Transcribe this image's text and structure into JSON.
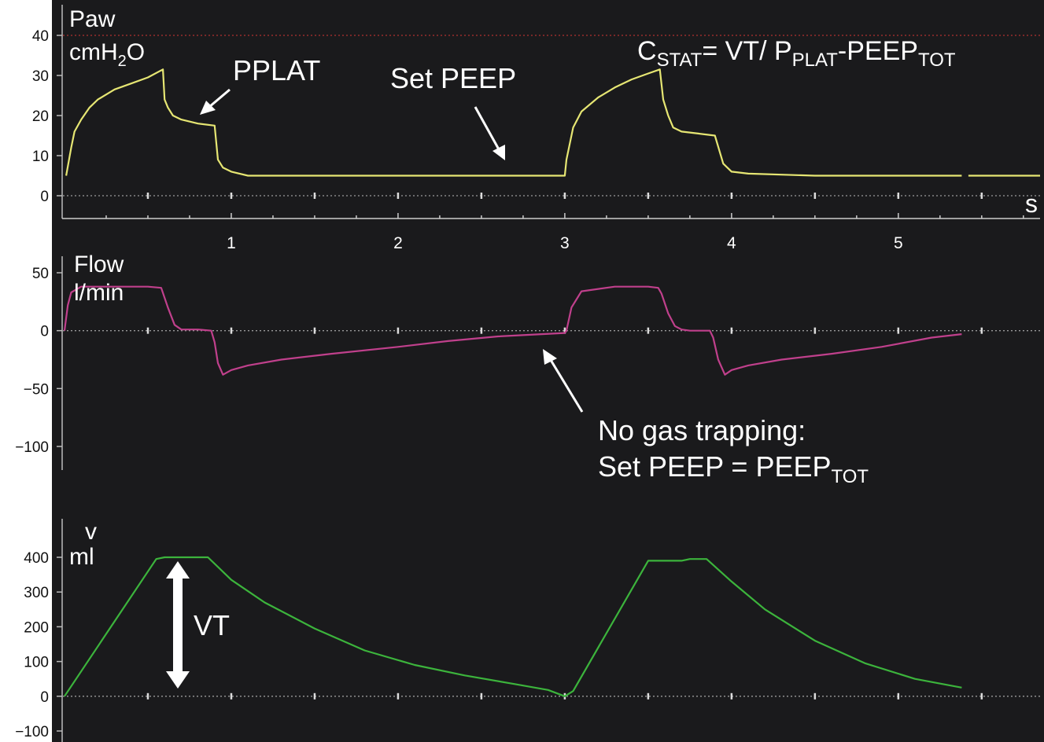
{
  "chart_data": [
    {
      "type": "line",
      "title": "",
      "ylabel_line1": "Paw",
      "ylabel_line2_base": "cmH",
      "ylabel_line2_sub": "2",
      "ylabel_line2_tail": "O",
      "xlabel": "s",
      "ylim": [
        0,
        40
      ],
      "yticks": [
        0,
        10,
        20,
        30,
        40
      ],
      "xticks": [
        1,
        2,
        3,
        4,
        5
      ],
      "xlim": [
        0,
        5.85
      ],
      "color": "#e6e673",
      "reference_line_color": "#b03030",
      "reference_line_value": 40,
      "series": [
        {
          "x": [
            0.01,
            0.04,
            0.06,
            0.1,
            0.15,
            0.2,
            0.3,
            0.4,
            0.5,
            0.59,
            0.6,
            0.62,
            0.65,
            0.7,
            0.8,
            0.9,
            0.92,
            0.95,
            1.0,
            1.1,
            1.2,
            1.5,
            1.8,
            2.1,
            2.4,
            2.7,
            3.0,
            3.01,
            3.05,
            3.1,
            3.2,
            3.3,
            3.4,
            3.5,
            3.57,
            3.59,
            3.62,
            3.65,
            3.7,
            3.8,
            3.9,
            3.95,
            4.0,
            4.1,
            4.5,
            5.0,
            5.38
          ],
          "y": [
            5,
            12,
            16,
            19,
            22,
            24,
            26.5,
            28,
            29.5,
            31.5,
            24,
            22,
            20,
            19,
            18,
            17.5,
            9,
            7,
            6,
            5,
            5,
            5,
            5,
            5,
            5,
            5,
            5,
            9,
            17,
            21,
            24.5,
            27,
            29,
            30.5,
            31.5,
            24,
            20,
            17,
            16,
            15.5,
            15,
            8,
            6,
            5.5,
            5,
            5,
            5
          ]
        },
        {
          "x": [
            5.42,
            5.85
          ],
          "y": [
            5,
            5
          ]
        }
      ]
    },
    {
      "type": "line",
      "title": "",
      "ylabel_line1": "Flow",
      "ylabel_line2": "l/min",
      "ylim": [
        -100,
        50
      ],
      "yticks": [
        50,
        0,
        -50,
        -100
      ],
      "ytick_labels": [
        "50",
        "0",
        "−50",
        "−100"
      ],
      "color": "#c0408c",
      "series": [
        {
          "x": [
            0.0,
            0.02,
            0.04,
            0.1,
            0.3,
            0.5,
            0.58,
            0.62,
            0.66,
            0.7,
            0.8,
            0.88,
            0.9,
            0.92,
            0.95,
            1.0,
            1.1,
            1.3,
            1.6,
            2.0,
            2.3,
            2.6,
            3.0,
            3.01,
            3.04,
            3.1,
            3.3,
            3.5,
            3.56,
            3.58,
            3.62,
            3.66,
            3.7,
            3.75,
            3.87,
            3.89,
            3.92,
            3.96,
            4.0,
            4.1,
            4.3,
            4.6,
            4.9,
            5.2,
            5.38
          ],
          "y": [
            0,
            22,
            33,
            38,
            38,
            38,
            37,
            20,
            5,
            1,
            1,
            0,
            -10,
            -28,
            -38,
            -34,
            -30,
            -25,
            -20,
            -14,
            -9,
            -5,
            -2,
            0,
            20,
            34,
            38,
            38,
            37,
            32,
            15,
            4,
            1,
            0,
            0,
            -6,
            -25,
            -38,
            -34,
            -30,
            -25,
            -20,
            -14,
            -6,
            -3
          ]
        }
      ]
    },
    {
      "type": "line",
      "title": "",
      "ylabel_line1": "v",
      "ylabel_line2": "ml",
      "ylim": [
        -100,
        400
      ],
      "yticks": [
        400,
        300,
        200,
        100,
        0,
        -100
      ],
      "ytick_labels": [
        "400",
        "300",
        "200",
        "100",
        "0",
        "−100"
      ],
      "color": "#3cb43c",
      "series": [
        {
          "x": [
            0.0,
            0.55,
            0.6,
            0.67,
            0.86,
            1.0,
            1.2,
            1.5,
            1.8,
            2.1,
            2.4,
            2.7,
            2.9,
            3.0,
            3.05,
            3.5,
            3.55,
            3.7,
            3.75,
            3.85,
            4.0,
            4.2,
            4.5,
            4.8,
            5.1,
            5.38
          ],
          "y": [
            0,
            395,
            400,
            400,
            400,
            335,
            270,
            195,
            132,
            90,
            60,
            35,
            18,
            0,
            15,
            390,
            390,
            390,
            395,
            395,
            330,
            250,
            160,
            95,
            50,
            25
          ]
        }
      ]
    }
  ],
  "annotations": {
    "pplat": "PPLAT",
    "set_peep": "Set PEEP",
    "cstat_c": "C",
    "cstat_c_sub": "STAT",
    "cstat_mid": "= VT/ P",
    "cstat_p_sub": "PLAT",
    "cstat_dash": "-PEEP",
    "cstat_tot_sub": "TOT",
    "no_trap_line1": "No gas trapping:",
    "no_trap_line2_base": "Set PEEP = PEEP",
    "no_trap_line2_sub": "TOT",
    "vt": "VT"
  }
}
